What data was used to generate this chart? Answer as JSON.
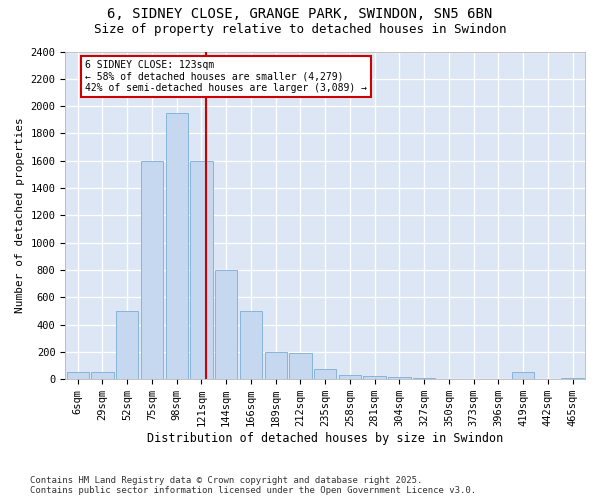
{
  "title1": "6, SIDNEY CLOSE, GRANGE PARK, SWINDON, SN5 6BN",
  "title2": "Size of property relative to detached houses in Swindon",
  "xlabel": "Distribution of detached houses by size in Swindon",
  "ylabel": "Number of detached properties",
  "footnote": "Contains HM Land Registry data © Crown copyright and database right 2025.\nContains public sector information licensed under the Open Government Licence v3.0.",
  "categories": [
    "6sqm",
    "29sqm",
    "52sqm",
    "75sqm",
    "98sqm",
    "121sqm",
    "144sqm",
    "166sqm",
    "189sqm",
    "212sqm",
    "235sqm",
    "258sqm",
    "281sqm",
    "304sqm",
    "327sqm",
    "350sqm",
    "373sqm",
    "396sqm",
    "419sqm",
    "442sqm",
    "465sqm"
  ],
  "values": [
    50,
    50,
    500,
    1600,
    1950,
    1600,
    800,
    500,
    200,
    190,
    75,
    30,
    20,
    15,
    10,
    5,
    3,
    2,
    50,
    2,
    10
  ],
  "bar_color": "#c5d8f0",
  "bar_edge_color": "#7aadd4",
  "bg_color": "#dce6f5",
  "grid_color": "#ffffff",
  "annotation_text": "6 SIDNEY CLOSE: 123sqm\n← 58% of detached houses are smaller (4,279)\n42% of semi-detached houses are larger (3,089) →",
  "vline_x_index": 5,
  "vline_color": "#cc0000",
  "annotation_box_color": "#cc0000",
  "ylim": [
    0,
    2400
  ],
  "yticks": [
    0,
    200,
    400,
    600,
    800,
    1000,
    1200,
    1400,
    1600,
    1800,
    2000,
    2200,
    2400
  ],
  "title1_fontsize": 10,
  "title2_fontsize": 9,
  "xlabel_fontsize": 8.5,
  "ylabel_fontsize": 8,
  "tick_fontsize": 7.5,
  "footnote_fontsize": 6.5
}
